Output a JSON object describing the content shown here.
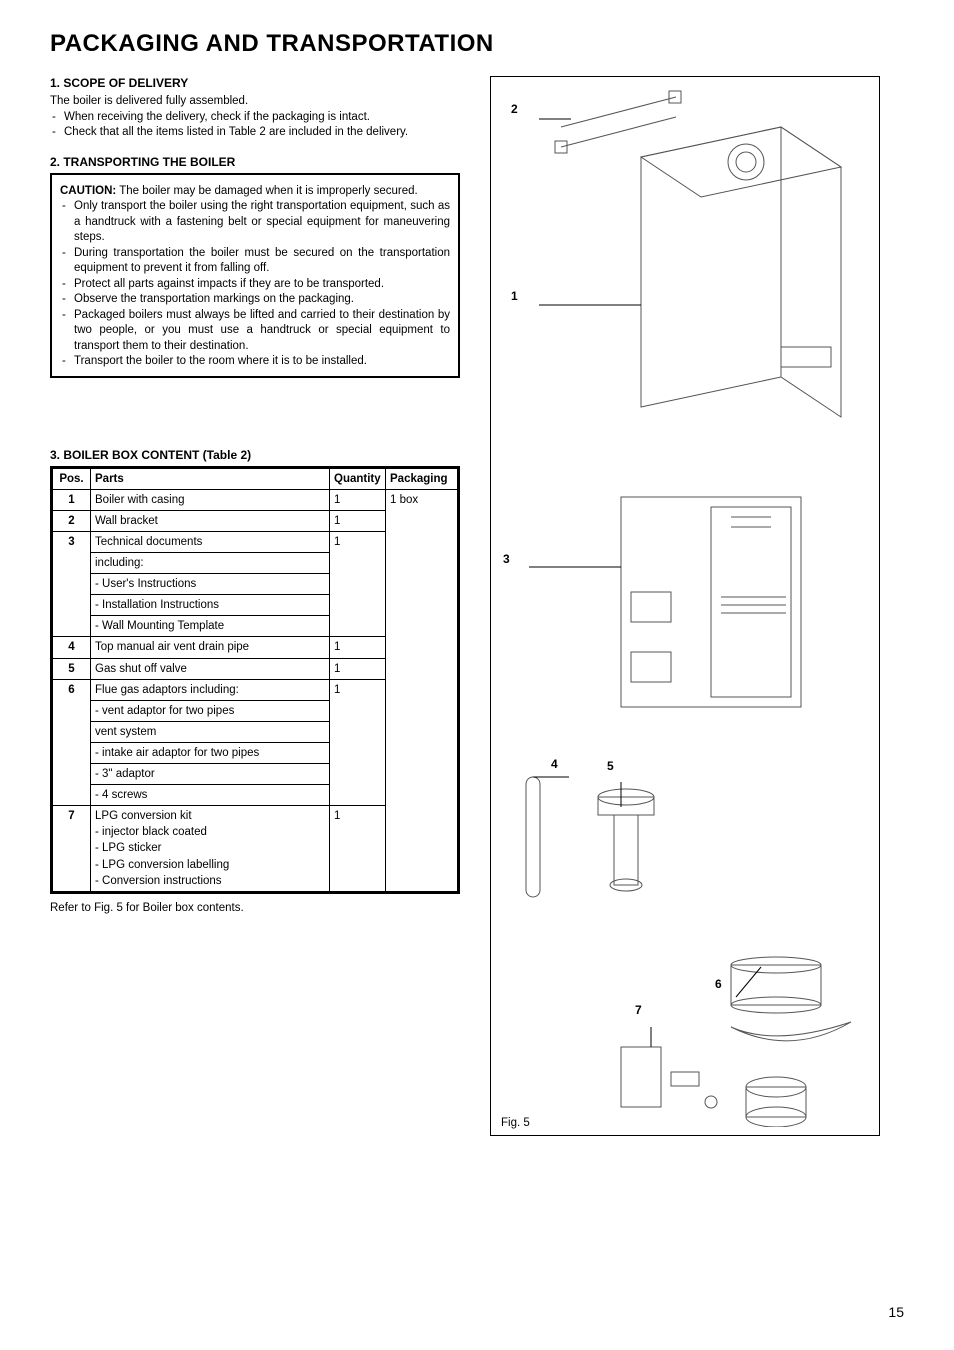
{
  "page": {
    "title": "PACKAGING AND TRANSPORTATION",
    "number": "15"
  },
  "section1": {
    "heading": "1. SCOPE OF DELIVERY",
    "intro": "The boiler is delivered fully assembled.",
    "bullets": [
      "When receiving the delivery, check if the packaging is intact.",
      "Check that all the items listed in Table 2 are included in the delivery."
    ]
  },
  "section2": {
    "heading": "2. TRANSPORTING THE BOILER",
    "caution_label": "CAUTION:",
    "caution_text": " The boiler may be damaged when it is improperly secured.",
    "bullets": [
      "Only transport the boiler using the right transportation equipment, such as a handtruck with a fastening belt or special equipment for maneuvering steps.",
      "During transportation the boiler must be secured on the transportation equipment to prevent it from falling off.",
      "Protect all parts against impacts if they are to be transported.",
      "Observe the transportation markings on the packaging.",
      "Packaged boilers must always be lifted and carried to their destination by two people, or you must use a handtruck or special equipment to transport them to their destination.",
      "Transport the boiler to the room where it is to be installed."
    ]
  },
  "section3": {
    "heading": "3. BOILER BOX CONTENT (Table 2)",
    "columns": [
      "Pos.",
      "Parts",
      "Quantity",
      "Packaging"
    ],
    "rows": [
      {
        "pos": "1",
        "parts": "Boiler with casing",
        "qty": "1",
        "pkg": "1 box"
      },
      {
        "pos": "2",
        "parts": "Wall bracket",
        "qty": "1",
        "pkg": ""
      },
      {
        "pos": "3",
        "parts": "Technical documents",
        "qty": "1",
        "pkg": "",
        "subparts": [
          "including:",
          "- User's Instructions",
          "- Installation Instructions",
          "- Wall Mounting Template"
        ]
      },
      {
        "pos": "4",
        "parts": "Top manual air vent drain pipe",
        "qty": "1",
        "pkg": ""
      },
      {
        "pos": "5",
        "parts": "Gas shut off valve",
        "qty": "1",
        "pkg": ""
      },
      {
        "pos": "6",
        "parts": "Flue gas adaptors including:",
        "qty": "1",
        "pkg": "",
        "subparts": [
          "- vent adaptor for two pipes",
          "vent system",
          "- intake air adaptor for two pipes",
          "- 3\" adaptor",
          "- 4 screws"
        ]
      },
      {
        "pos": "7",
        "parts": "LPG conversion kit",
        "qty": "1",
        "pkg": "",
        "subparts_inline": [
          "- injector black coated",
          "- LPG sticker",
          "- LPG conversion labelling",
          "- Conversion instructions"
        ]
      }
    ],
    "footnote": "Refer to Fig. 5 for Boiler box contents."
  },
  "figure": {
    "caption": "Fig. 5",
    "callouts": {
      "c1": "1",
      "c2": "2",
      "c3": "3",
      "c4": "4",
      "c5": "5",
      "c6": "6",
      "c7": "7"
    }
  }
}
